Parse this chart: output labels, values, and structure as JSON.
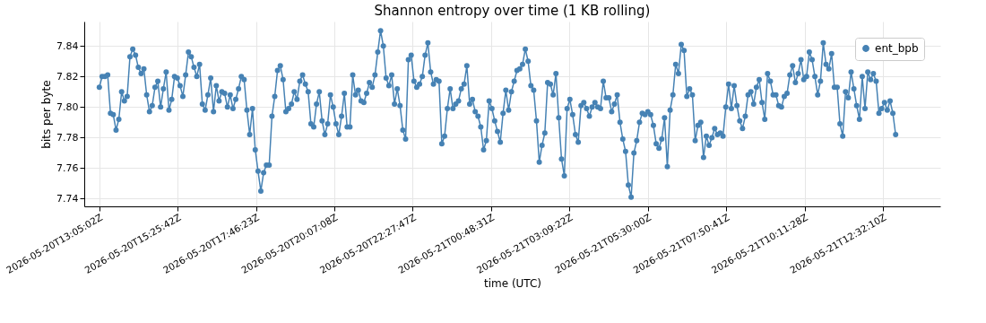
{
  "chart_data": {
    "type": "line",
    "title": "Shannon entropy over time (1 KB rolling)",
    "xlabel": "time (UTC)",
    "ylabel": "bits per byte",
    "x": [
      "2026-05-20T13:05:02",
      "2026-05-20T13:10:02",
      "2026-05-20T13:15:02",
      "2026-05-20T13:20:02",
      "2026-05-20T13:25:02",
      "2026-05-20T13:30:02",
      "2026-05-20T13:35:02",
      "2026-05-20T13:40:02",
      "2026-05-20T13:45:02",
      "2026-05-20T13:50:02",
      "2026-05-20T13:55:02",
      "2026-05-20T14:00:02",
      "2026-05-20T14:05:02",
      "2026-05-20T14:10:02",
      "2026-05-20T14:15:02",
      "2026-05-20T14:20:02",
      "2026-05-20T14:25:02",
      "2026-05-20T14:30:02",
      "2026-05-20T14:35:02",
      "2026-05-20T14:40:02",
      "2026-05-20T14:45:02",
      "2026-05-20T14:50:02",
      "2026-05-20T14:55:02",
      "2026-05-20T15:00:02",
      "2026-05-20T15:05:02",
      "2026-05-20T15:10:02",
      "2026-05-20T15:15:02",
      "2026-05-20T15:20:02",
      "2026-05-20T15:25:02",
      "2026-05-20T15:30:02",
      "2026-05-20T15:35:02",
      "2026-05-20T15:40:02",
      "2026-05-20T15:45:02",
      "2026-05-20T15:50:02",
      "2026-05-20T15:55:02",
      "2026-05-20T16:00:02",
      "2026-05-20T16:05:02",
      "2026-05-20T16:10:02",
      "2026-05-20T16:15:02",
      "2026-05-20T16:20:02",
      "2026-05-20T16:25:02",
      "2026-05-20T16:30:02",
      "2026-05-20T16:35:02",
      "2026-05-20T16:40:02",
      "2026-05-20T16:45:02",
      "2026-05-20T16:50:02",
      "2026-05-20T16:55:02",
      "2026-05-20T17:00:02",
      "2026-05-20T17:05:02",
      "2026-05-20T17:10:02",
      "2026-05-20T17:15:02",
      "2026-05-20T17:20:02",
      "2026-05-20T17:25:02",
      "2026-05-20T17:30:02",
      "2026-05-20T17:35:02",
      "2026-05-20T17:40:02",
      "2026-05-20T17:45:02",
      "2026-05-20T17:50:02",
      "2026-05-20T17:55:02",
      "2026-05-20T18:00:02",
      "2026-05-20T18:05:02",
      "2026-05-20T18:10:02",
      "2026-05-20T18:15:02",
      "2026-05-20T18:20:02",
      "2026-05-20T18:25:02",
      "2026-05-20T18:30:02",
      "2026-05-20T18:35:02",
      "2026-05-20T18:40:02",
      "2026-05-20T18:45:02",
      "2026-05-20T18:50:02",
      "2026-05-20T18:55:02",
      "2026-05-20T19:00:02",
      "2026-05-20T19:05:02",
      "2026-05-20T19:10:02",
      "2026-05-20T19:15:02",
      "2026-05-20T19:20:02",
      "2026-05-20T19:25:02",
      "2026-05-20T19:30:02",
      "2026-05-20T19:35:02",
      "2026-05-20T19:40:02",
      "2026-05-20T19:45:02",
      "2026-05-20T19:50:02",
      "2026-05-20T19:55:02",
      "2026-05-20T20:00:02",
      "2026-05-20T20:05:02",
      "2026-05-20T20:10:02",
      "2026-05-20T20:15:02",
      "2026-05-20T20:20:02",
      "2026-05-20T20:25:02",
      "2026-05-20T20:30:02",
      "2026-05-20T20:35:02",
      "2026-05-20T20:40:02",
      "2026-05-20T20:45:02",
      "2026-05-20T20:50:02",
      "2026-05-20T20:55:02",
      "2026-05-20T21:00:02",
      "2026-05-20T21:05:02",
      "2026-05-20T21:10:02",
      "2026-05-20T21:15:02",
      "2026-05-20T21:20:02",
      "2026-05-20T21:25:02",
      "2026-05-20T21:30:02",
      "2026-05-20T21:35:02",
      "2026-05-20T21:40:02",
      "2026-05-20T21:45:02",
      "2026-05-20T21:50:02",
      "2026-05-20T21:55:02",
      "2026-05-20T22:00:02",
      "2026-05-20T22:05:02",
      "2026-05-20T22:10:02",
      "2026-05-20T22:15:02",
      "2026-05-20T22:20:02",
      "2026-05-20T22:25:02",
      "2026-05-20T22:30:02",
      "2026-05-20T22:35:02",
      "2026-05-20T22:40:02",
      "2026-05-20T22:45:02",
      "2026-05-20T22:50:02",
      "2026-05-20T22:55:02",
      "2026-05-20T23:00:02",
      "2026-05-20T23:05:02",
      "2026-05-20T23:10:02",
      "2026-05-20T23:15:02",
      "2026-05-20T23:20:02",
      "2026-05-20T23:25:02",
      "2026-05-20T23:30:02",
      "2026-05-20T23:35:02",
      "2026-05-20T23:40:02",
      "2026-05-20T23:45:02",
      "2026-05-20T23:50:02",
      "2026-05-20T23:55:02",
      "2026-05-21T00:00:02",
      "2026-05-21T00:05:02",
      "2026-05-21T00:10:02",
      "2026-05-21T00:15:02",
      "2026-05-21T00:20:02",
      "2026-05-21T00:25:02",
      "2026-05-21T00:30:02",
      "2026-05-21T00:35:02",
      "2026-05-21T00:40:02",
      "2026-05-21T00:45:02",
      "2026-05-21T00:50:02",
      "2026-05-21T00:55:02",
      "2026-05-21T01:00:02",
      "2026-05-21T01:05:02",
      "2026-05-21T01:10:02",
      "2026-05-21T01:15:02",
      "2026-05-21T01:20:02",
      "2026-05-21T01:25:02",
      "2026-05-21T01:30:02",
      "2026-05-21T01:35:02",
      "2026-05-21T01:40:02",
      "2026-05-21T01:45:02",
      "2026-05-21T01:50:02",
      "2026-05-21T01:55:02",
      "2026-05-21T02:00:02",
      "2026-05-21T02:05:02",
      "2026-05-21T02:10:02",
      "2026-05-21T02:15:02",
      "2026-05-21T02:20:02",
      "2026-05-21T02:25:02",
      "2026-05-21T02:30:02",
      "2026-05-21T02:35:02",
      "2026-05-21T02:40:02",
      "2026-05-21T02:45:02",
      "2026-05-21T02:50:02",
      "2026-05-21T02:55:02",
      "2026-05-21T03:00:02",
      "2026-05-21T03:05:02",
      "2026-05-21T03:10:02",
      "2026-05-21T03:15:02",
      "2026-05-21T03:20:02",
      "2026-05-21T03:25:02",
      "2026-05-21T03:30:02",
      "2026-05-21T03:35:02",
      "2026-05-21T03:40:02",
      "2026-05-21T03:45:02",
      "2026-05-21T03:50:02",
      "2026-05-21T03:55:02",
      "2026-05-21T04:00:02",
      "2026-05-21T04:05:02",
      "2026-05-21T04:10:02",
      "2026-05-21T04:15:02",
      "2026-05-21T04:20:02",
      "2026-05-21T04:25:02",
      "2026-05-21T04:30:02",
      "2026-05-21T04:35:02",
      "2026-05-21T04:40:02",
      "2026-05-21T04:45:02",
      "2026-05-21T04:50:02",
      "2026-05-21T04:55:02",
      "2026-05-21T05:00:02",
      "2026-05-21T05:05:02",
      "2026-05-21T05:10:02",
      "2026-05-21T05:15:02",
      "2026-05-21T05:20:02",
      "2026-05-21T05:25:02",
      "2026-05-21T05:30:02",
      "2026-05-21T05:35:02",
      "2026-05-21T05:40:02",
      "2026-05-21T05:45:02",
      "2026-05-21T05:50:02",
      "2026-05-21T05:55:02",
      "2026-05-21T06:00:02",
      "2026-05-21T06:05:02",
      "2026-05-21T06:10:02",
      "2026-05-21T06:15:02",
      "2026-05-21T06:20:02",
      "2026-05-21T06:25:02",
      "2026-05-21T06:30:02",
      "2026-05-21T06:35:02",
      "2026-05-21T06:40:02",
      "2026-05-21T06:45:02",
      "2026-05-21T06:50:02",
      "2026-05-21T06:55:02",
      "2026-05-21T07:00:02",
      "2026-05-21T07:05:02",
      "2026-05-21T07:10:02",
      "2026-05-21T07:15:02",
      "2026-05-21T07:20:02",
      "2026-05-21T07:25:02",
      "2026-05-21T07:30:02",
      "2026-05-21T07:35:02",
      "2026-05-21T07:40:02",
      "2026-05-21T07:45:02",
      "2026-05-21T07:50:02",
      "2026-05-21T07:55:02",
      "2026-05-21T08:00:02",
      "2026-05-21T08:05:02",
      "2026-05-21T08:10:02",
      "2026-05-21T08:15:02",
      "2026-05-21T08:20:02",
      "2026-05-21T08:25:02",
      "2026-05-21T08:30:02",
      "2026-05-21T08:35:02",
      "2026-05-21T08:40:02",
      "2026-05-21T08:45:02",
      "2026-05-21T08:50:02",
      "2026-05-21T08:55:02",
      "2026-05-21T09:00:02",
      "2026-05-21T09:05:02",
      "2026-05-21T09:10:02",
      "2026-05-21T09:15:02",
      "2026-05-21T09:20:02",
      "2026-05-21T09:25:02",
      "2026-05-21T09:30:02",
      "2026-05-21T09:35:02",
      "2026-05-21T09:40:02",
      "2026-05-21T09:45:02",
      "2026-05-21T09:50:02",
      "2026-05-21T09:55:02",
      "2026-05-21T10:00:02",
      "2026-05-21T10:05:02",
      "2026-05-21T10:10:02",
      "2026-05-21T10:15:02",
      "2026-05-21T10:20:02",
      "2026-05-21T10:25:02",
      "2026-05-21T10:30:02",
      "2026-05-21T10:35:02",
      "2026-05-21T10:40:02",
      "2026-05-21T10:45:02",
      "2026-05-21T10:50:02",
      "2026-05-21T10:55:02",
      "2026-05-21T11:00:02",
      "2026-05-21T11:05:02",
      "2026-05-21T11:10:02",
      "2026-05-21T11:15:02",
      "2026-05-21T11:20:02",
      "2026-05-21T11:25:02",
      "2026-05-21T11:30:02",
      "2026-05-21T11:35:02",
      "2026-05-21T11:40:02",
      "2026-05-21T11:45:02",
      "2026-05-21T11:50:02",
      "2026-05-21T11:55:02",
      "2026-05-21T12:00:02",
      "2026-05-21T12:05:02",
      "2026-05-21T12:10:02",
      "2026-05-21T12:15:02",
      "2026-05-21T12:20:02",
      "2026-05-21T12:25:02",
      "2026-05-21T12:30:02",
      "2026-05-21T12:35:02",
      "2026-05-21T12:40:02",
      "2026-05-21T12:45:02",
      "2026-05-21T12:50:02",
      "2026-05-21T12:55:02"
    ],
    "series": [
      {
        "name": "ent_bpb",
        "color": "#4682b4",
        "values": [
          7.813,
          7.82,
          7.82,
          7.821,
          7.796,
          7.795,
          7.785,
          7.792,
          7.81,
          7.804,
          7.807,
          7.833,
          7.838,
          7.834,
          7.826,
          7.822,
          7.825,
          7.808,
          7.797,
          7.801,
          7.813,
          7.817,
          7.8,
          7.812,
          7.823,
          7.798,
          7.805,
          7.82,
          7.819,
          7.814,
          7.807,
          7.821,
          7.836,
          7.833,
          7.826,
          7.82,
          7.828,
          7.802,
          7.798,
          7.808,
          7.819,
          7.797,
          7.814,
          7.804,
          7.81,
          7.809,
          7.8,
          7.808,
          7.799,
          7.805,
          7.812,
          7.82,
          7.818,
          7.798,
          7.782,
          7.799,
          7.772,
          7.758,
          7.745,
          7.757,
          7.762,
          7.762,
          7.794,
          7.807,
          7.824,
          7.827,
          7.818,
          7.797,
          7.799,
          7.802,
          7.81,
          7.805,
          7.817,
          7.821,
          7.815,
          7.81,
          7.789,
          7.787,
          7.802,
          7.81,
          7.791,
          7.782,
          7.789,
          7.808,
          7.8,
          7.789,
          7.782,
          7.794,
          7.809,
          7.787,
          7.787,
          7.821,
          7.808,
          7.811,
          7.804,
          7.803,
          7.809,
          7.816,
          7.813,
          7.821,
          7.836,
          7.85,
          7.84,
          7.819,
          7.814,
          7.821,
          7.802,
          7.812,
          7.801,
          7.785,
          7.779,
          7.831,
          7.834,
          7.817,
          7.813,
          7.815,
          7.82,
          7.834,
          7.842,
          7.823,
          7.815,
          7.818,
          7.817,
          7.776,
          7.781,
          7.799,
          7.812,
          7.799,
          7.802,
          7.804,
          7.812,
          7.815,
          7.827,
          7.802,
          7.805,
          7.797,
          7.794,
          7.787,
          7.772,
          7.778,
          7.804,
          7.799,
          7.791,
          7.784,
          7.777,
          7.796,
          7.811,
          7.798,
          7.81,
          7.817,
          7.824,
          7.825,
          7.828,
          7.838,
          7.83,
          7.814,
          7.811,
          7.791,
          7.764,
          7.775,
          7.783,
          7.816,
          7.815,
          7.808,
          7.822,
          7.793,
          7.766,
          7.755,
          7.799,
          7.805,
          7.795,
          7.782,
          7.777,
          7.801,
          7.803,
          7.799,
          7.794,
          7.8,
          7.803,
          7.8,
          7.799,
          7.817,
          7.806,
          7.806,
          7.797,
          7.802,
          7.808,
          7.79,
          7.779,
          7.771,
          7.749,
          7.741,
          7.77,
          7.778,
          7.79,
          7.796,
          7.795,
          7.797,
          7.795,
          7.788,
          7.776,
          7.773,
          7.779,
          7.793,
          7.761,
          7.798,
          7.808,
          7.828,
          7.822,
          7.841,
          7.837,
          7.807,
          7.812,
          7.808,
          7.778,
          7.788,
          7.79,
          7.767,
          7.781,
          7.775,
          7.78,
          7.786,
          7.782,
          7.783,
          7.781,
          7.8,
          7.815,
          7.799,
          7.814,
          7.801,
          7.791,
          7.786,
          7.794,
          7.808,
          7.81,
          7.802,
          7.813,
          7.818,
          7.803,
          7.792,
          7.822,
          7.817,
          7.808,
          7.808,
          7.801,
          7.8,
          7.807,
          7.809,
          7.821,
          7.827,
          7.816,
          7.822,
          7.831,
          7.818,
          7.82,
          7.836,
          7.831,
          7.82,
          7.808,
          7.817,
          7.842,
          7.828,
          7.825,
          7.835,
          7.813,
          7.813,
          7.789,
          7.781,
          7.81,
          7.806,
          7.823,
          7.812,
          7.801,
          7.792,
          7.82,
          7.799,
          7.823,
          7.818,
          7.822,
          7.817,
          7.796,
          7.799,
          7.803,
          7.798,
          7.804,
          7.796,
          7.782
        ]
      }
    ],
    "xlim": [
      "2026-05-20T12:37:57",
      "2026-05-21T14:15:12"
    ],
    "ylim": [
      7.735,
      7.856
    ],
    "xticks": [
      {
        "value": "2026-05-20T13:05:02",
        "label": "2026-05-20T13:05:02Z"
      },
      {
        "value": "2026-05-20T15:25:42",
        "label": "2026-05-20T15:25:42Z"
      },
      {
        "value": "2026-05-20T17:46:23",
        "label": "2026-05-20T17:46:23Z"
      },
      {
        "value": "2026-05-20T20:07:08",
        "label": "2026-05-20T20:07:08Z"
      },
      {
        "value": "2026-05-20T22:27:47",
        "label": "2026-05-20T22:27:47Z"
      },
      {
        "value": "2026-05-21T00:48:31",
        "label": "2026-05-21T00:48:31Z"
      },
      {
        "value": "2026-05-21T03:09:22",
        "label": "2026-05-21T03:09:22Z"
      },
      {
        "value": "2026-05-21T05:30:00",
        "label": "2026-05-21T05:30:00Z"
      },
      {
        "value": "2026-05-21T07:50:41",
        "label": "2026-05-21T07:50:41Z"
      },
      {
        "value": "2026-05-21T10:11:28",
        "label": "2026-05-21T10:11:28Z"
      },
      {
        "value": "2026-05-21T12:32:10",
        "label": "2026-05-21T12:32:10Z"
      }
    ],
    "yticks": [
      7.74,
      7.76,
      7.78,
      {
        "value": 7.8,
        "label": "7.80"
      },
      7.82,
      7.84
    ],
    "grid": true,
    "legend": "top right",
    "marker": "circle"
  }
}
